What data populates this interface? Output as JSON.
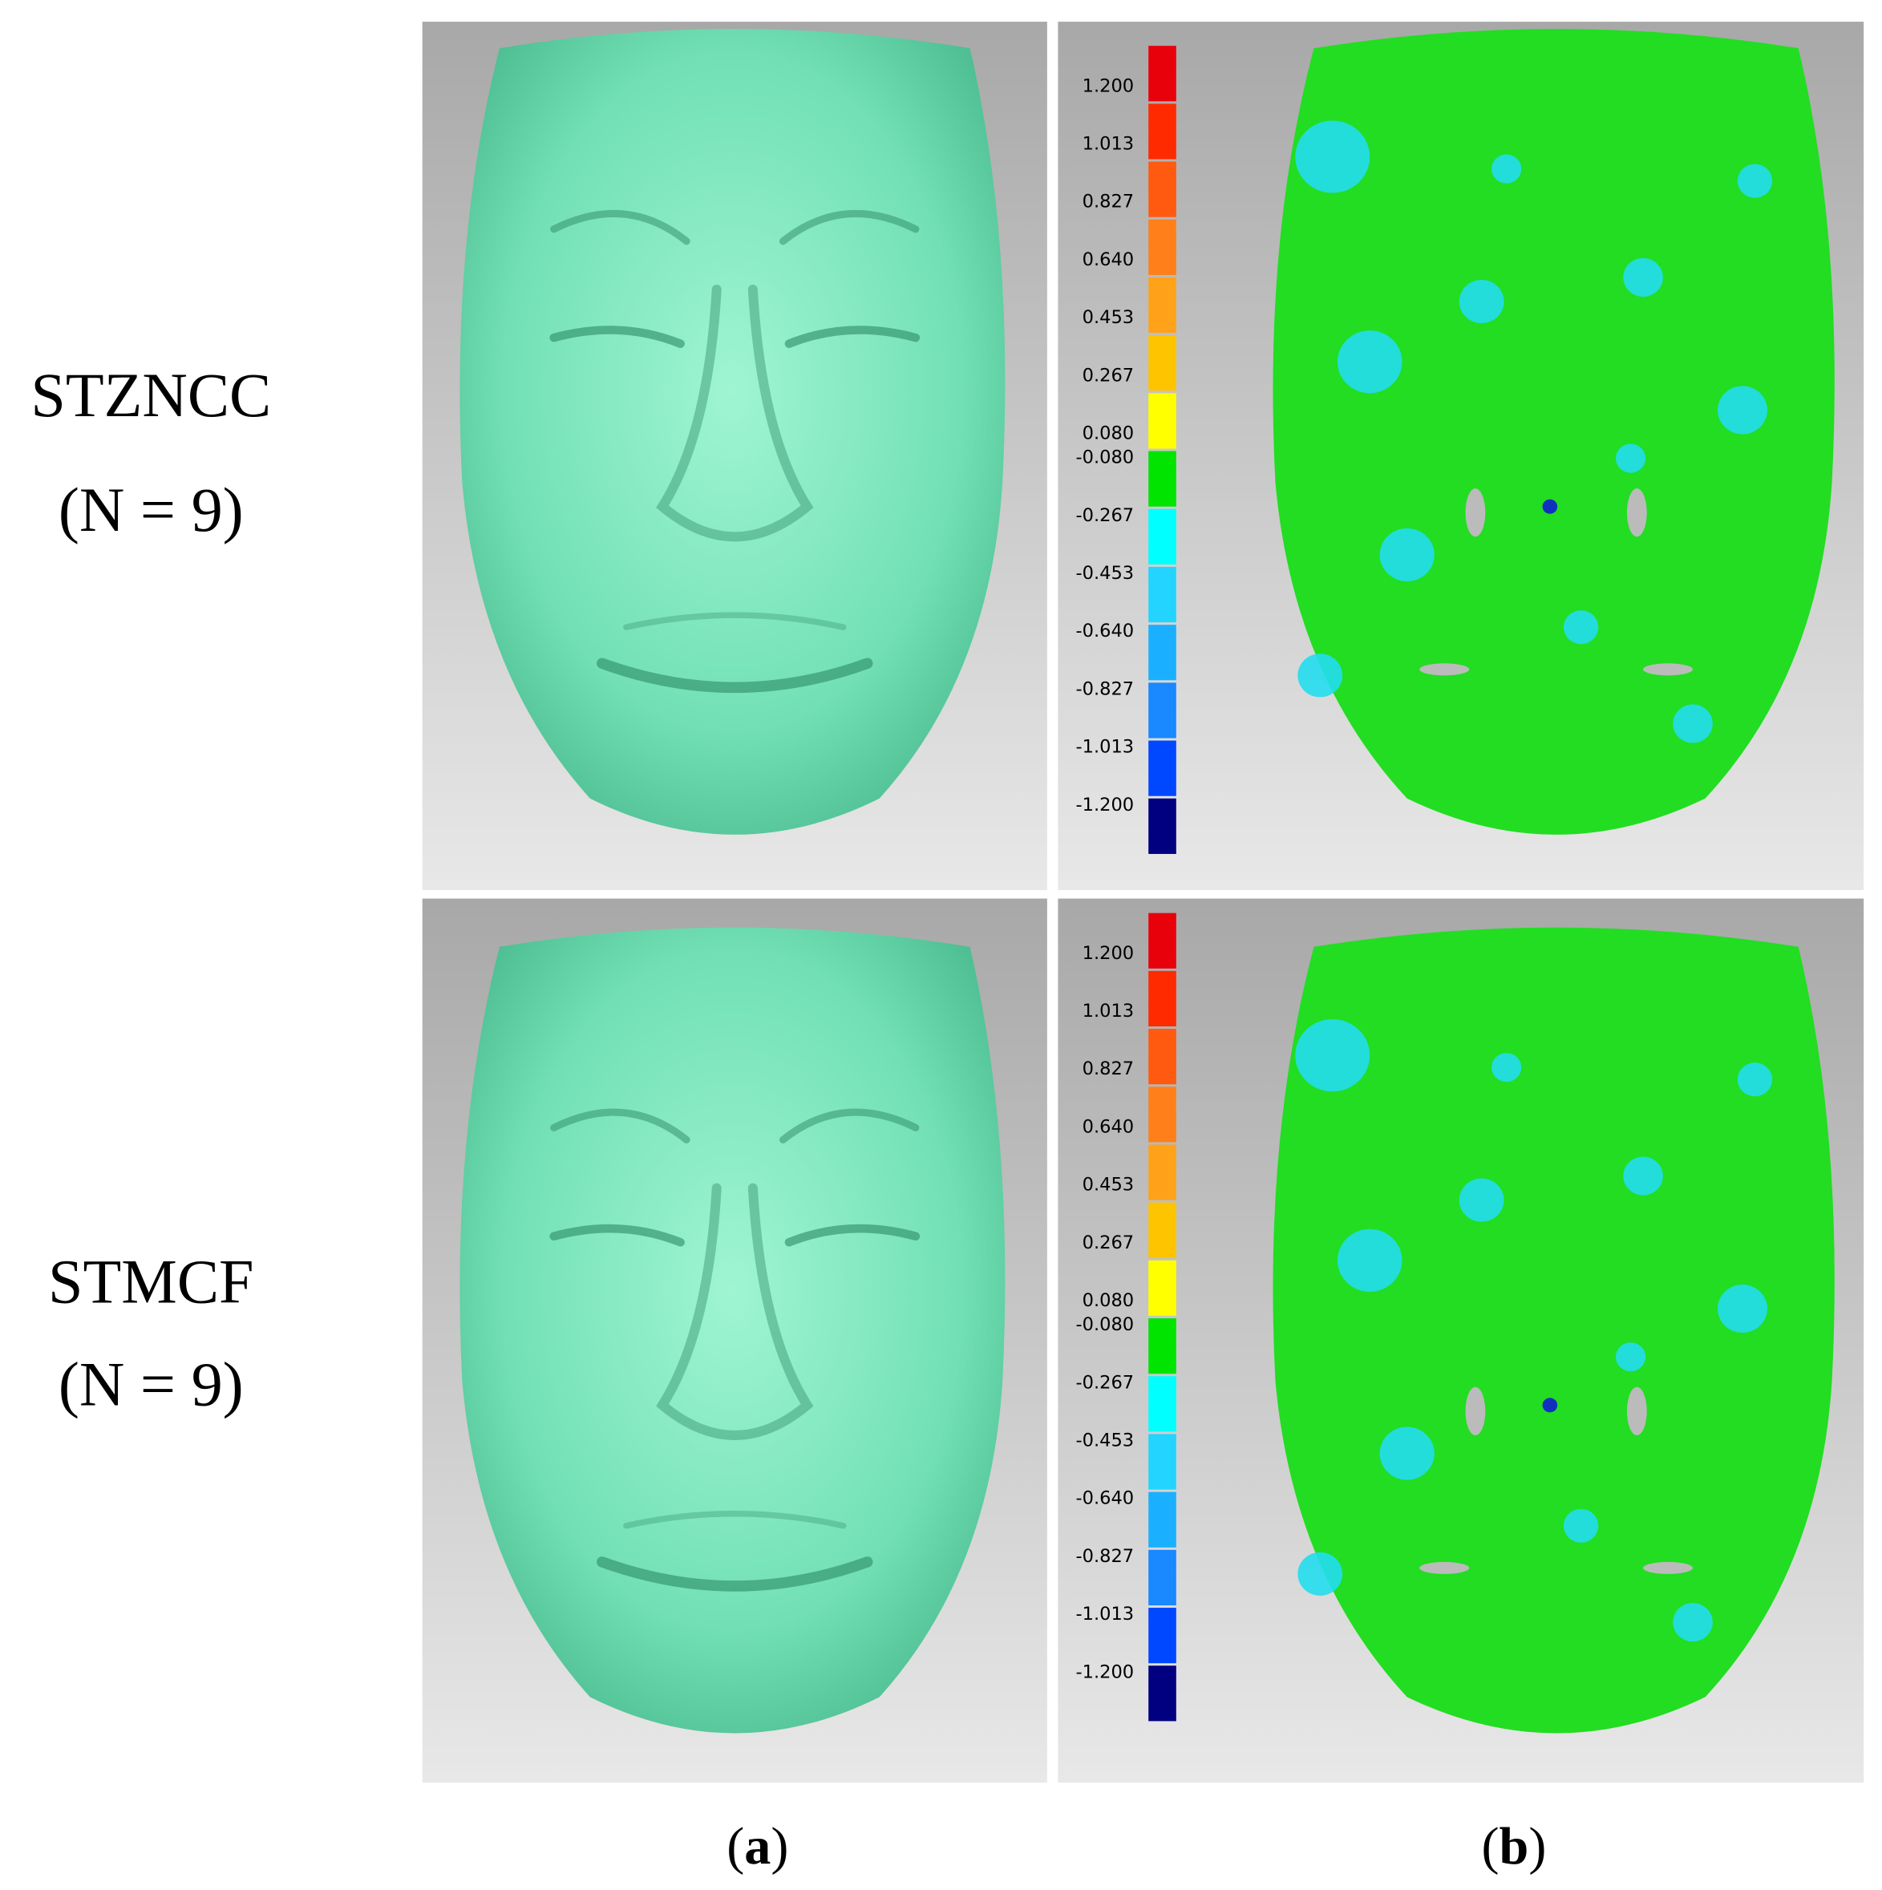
{
  "rows": [
    {
      "method": "STZNCC",
      "n": "(N = 9)"
    },
    {
      "method": "STMCF",
      "n": "(N = 9)"
    }
  ],
  "captions": [
    {
      "open": "(",
      "letter": "a",
      "close": ")"
    },
    {
      "open": "(",
      "letter": "b",
      "close": ")"
    }
  ],
  "colorbar": {
    "labels": [
      "1.200",
      "1.013",
      "0.827",
      "0.640",
      "0.453",
      "0.267",
      "0.080",
      "-0.080",
      "-0.267",
      "-0.453",
      "-0.640",
      "-0.827",
      "-1.013",
      "-1.200"
    ],
    "colors": [
      "#e8000b",
      "#ff2a00",
      "#ff5a10",
      "#ff801a",
      "#ffa21a",
      "#ffc400",
      "#ffff00",
      "#00e400",
      "#00ffff",
      "#22d4ff",
      "#1ab0ff",
      "#1a88ff",
      "#0048ff",
      "#000080"
    ]
  }
}
